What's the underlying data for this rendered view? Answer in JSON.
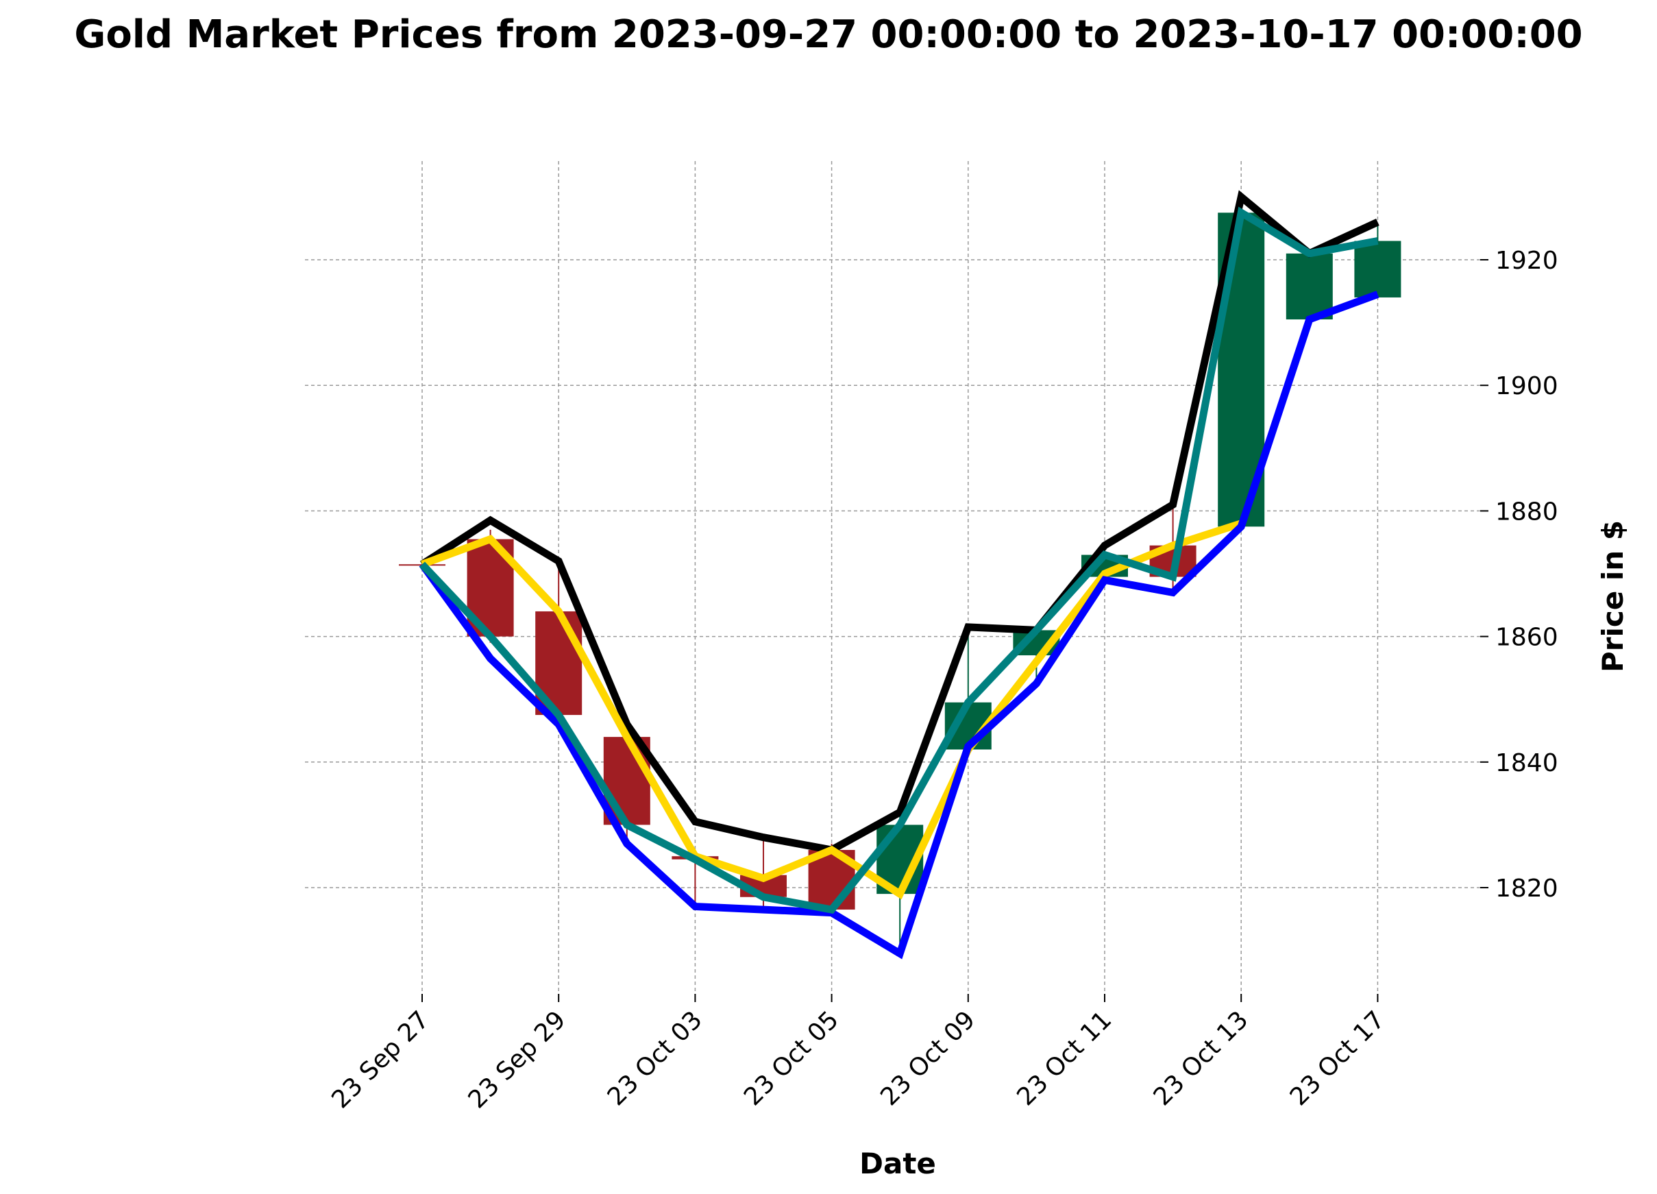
{
  "chart_data": {
    "type": "candlestick",
    "title": "Gold Market Prices from 2023-09-27 00:00:00 to 2023-10-17 00:00:00",
    "xlabel": "Date",
    "ylabel": "Price in $",
    "ylim": [
      1803.5,
      1935
    ],
    "y_ticks": [
      1820,
      1840,
      1860,
      1880,
      1900,
      1920
    ],
    "y_axis_side": "right",
    "grid": true,
    "x_ticks": [
      {
        "index": 0,
        "label": "23 Sep 27"
      },
      {
        "index": 2,
        "label": "23 Sep 29"
      },
      {
        "index": 4,
        "label": "23 Oct 03"
      },
      {
        "index": 6,
        "label": "23 Oct 05"
      },
      {
        "index": 8,
        "label": "23 Oct 09"
      },
      {
        "index": 10,
        "label": "23 Oct 11"
      },
      {
        "index": 12,
        "label": "23 Oct 13"
      },
      {
        "index": 14,
        "label": "23 Oct 17"
      }
    ],
    "candles": [
      {
        "date": "2023-09-27",
        "open": 1871.5,
        "close": 1871.3,
        "high": 1871.6,
        "low": 1871.2
      },
      {
        "date": "2023-09-28",
        "open": 1875.5,
        "close": 1860.0,
        "high": 1877.0,
        "low": 1859.0
      },
      {
        "date": "2023-09-29",
        "open": 1864.0,
        "close": 1847.5,
        "high": 1872.0,
        "low": 1846.5
      },
      {
        "date": "2023-10-02",
        "open": 1844.0,
        "close": 1830.0,
        "high": 1845.5,
        "low": 1828.0
      },
      {
        "date": "2023-10-03",
        "open": 1825.0,
        "close": 1824.5,
        "high": 1826.0,
        "low": 1817.0
      },
      {
        "date": "2023-10-04",
        "open": 1822.0,
        "close": 1818.5,
        "high": 1828.0,
        "low": 1817.0
      },
      {
        "date": "2023-10-05",
        "open": 1826.0,
        "close": 1816.5,
        "high": 1827.0,
        "low": 1815.5
      },
      {
        "date": "2023-10-06",
        "open": 1819.0,
        "close": 1830.0,
        "high": 1831.5,
        "low": 1810.0
      },
      {
        "date": "2023-10-09",
        "open": 1842.0,
        "close": 1849.5,
        "high": 1861.0,
        "low": 1841.0
      },
      {
        "date": "2023-10-10",
        "open": 1857.0,
        "close": 1861.0,
        "high": 1861.5,
        "low": 1853.0
      },
      {
        "date": "2023-10-11",
        "open": 1869.5,
        "close": 1873.0,
        "high": 1874.0,
        "low": 1868.5
      },
      {
        "date": "2023-10-12",
        "open": 1874.5,
        "close": 1869.5,
        "high": 1881.0,
        "low": 1867.0
      },
      {
        "date": "2023-10-13",
        "open": 1877.5,
        "close": 1927.5,
        "high": 1929.5,
        "low": 1877.0
      },
      {
        "date": "2023-10-16",
        "open": 1910.5,
        "close": 1921.0,
        "high": 1921.5,
        "low": 1910.0
      },
      {
        "date": "2023-10-17",
        "open": 1914.0,
        "close": 1923.0,
        "high": 1925.5,
        "low": 1914.0
      }
    ],
    "series": [
      {
        "color": "#000000",
        "values": [
          1871.5,
          1878.5,
          1872.0,
          1846.0,
          1830.5,
          1828.0,
          1826.0,
          1832.0,
          1861.5,
          1861.0,
          1874.5,
          1881.0,
          1930.0,
          1921.0,
          1926.0
        ]
      },
      {
        "color": "#ffd700",
        "values": [
          1871.5,
          1875.5,
          1864.0,
          1844.0,
          1825.0,
          1821.5,
          1826.0,
          1819.0,
          1842.0,
          1856.0,
          1870.0,
          1874.5,
          1878.0,
          null,
          null
        ]
      },
      {
        "color": "#0000ff",
        "values": [
          1871.5,
          1856.5,
          1846.0,
          1827.0,
          1817.0,
          1816.5,
          1816.0,
          1809.5,
          1842.5,
          1852.5,
          1869.0,
          1867.0,
          1877.5,
          1910.5,
          1914.5
        ]
      },
      {
        "color": "#008080",
        "values": [
          1871.5,
          1860.0,
          1847.5,
          1830.0,
          1824.5,
          1818.5,
          1816.5,
          1830.0,
          1849.5,
          1861.0,
          1873.0,
          1869.5,
          1927.5,
          1921.0,
          1923.0
        ]
      }
    ],
    "colors": {
      "up": "#006340",
      "down": "#a01e23",
      "grid": "#999999"
    }
  }
}
